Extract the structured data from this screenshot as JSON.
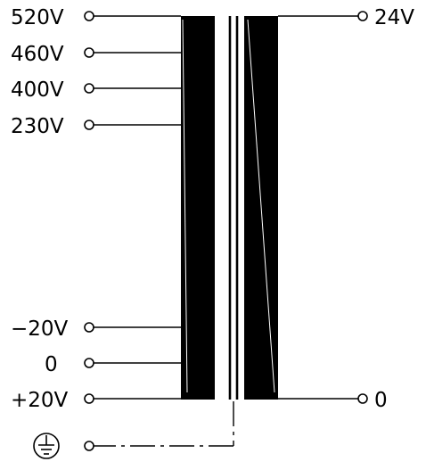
{
  "primary_taps": [
    {
      "label": "520V"
    },
    {
      "label": "460V"
    },
    {
      "label": "400V"
    },
    {
      "label": "230V"
    },
    {
      "label": "−20V"
    },
    {
      "label": "0"
    },
    {
      "label": "+20V"
    }
  ],
  "secondary_taps": [
    {
      "label": "24V"
    },
    {
      "label": "0"
    }
  ],
  "ground": {
    "icon": "ground-icon"
  },
  "colors": {
    "ink": "#000000",
    "background": "#ffffff"
  }
}
